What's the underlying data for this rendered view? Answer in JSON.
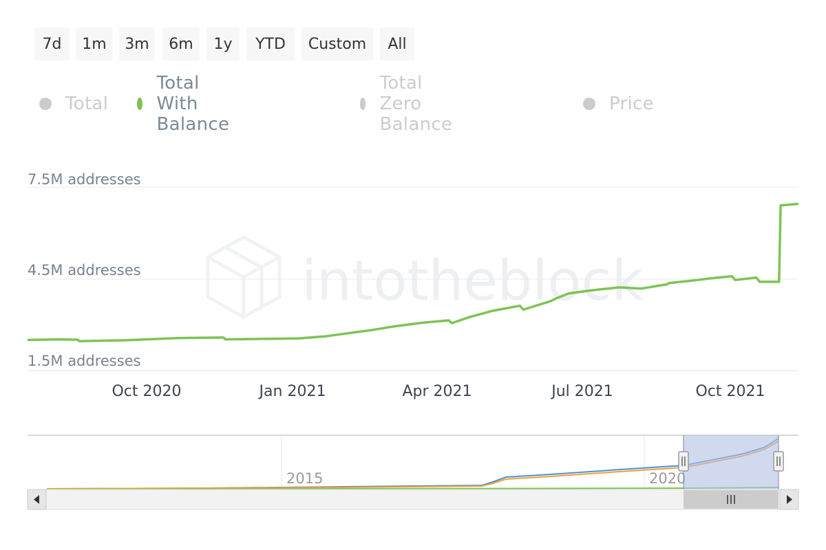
{
  "range_selector": {
    "buttons": [
      "7d",
      "1m",
      "3m",
      "6m",
      "1y",
      "YTD",
      "Custom",
      "All"
    ]
  },
  "legend": {
    "items": [
      {
        "label": "Total",
        "active": false,
        "color": "#cccccc"
      },
      {
        "label": "Total With Balance",
        "active": true,
        "color": "#7dc354"
      },
      {
        "label": "Total Zero Balance",
        "active": false,
        "color": "#cccccc"
      },
      {
        "label": "Price",
        "active": false,
        "color": "#cccccc"
      }
    ]
  },
  "watermark": "intotheblock",
  "chart_data": {
    "type": "line",
    "title": "",
    "y_axis": {
      "ticks": [
        "7.5M addresses",
        "4.5M addresses",
        "1.5M addresses"
      ],
      "range_millions": [
        1.5,
        7.5
      ],
      "tick_values_millions": [
        7.5,
        4.5,
        1.5
      ],
      "grid": true
    },
    "x_axis": {
      "ticks": [
        "Oct 2020",
        "Jan 2021",
        "Apr 2021",
        "Jul 2021",
        "Oct 2021"
      ],
      "range": [
        "2020-08-01",
        "2021-11-20"
      ]
    },
    "series": [
      {
        "name": "Total With Balance",
        "color": "#7dc354",
        "unit": "million addresses",
        "x": [
          "2020-08-01",
          "2020-08-20",
          "2020-09-01",
          "2020-09-02",
          "2020-10-01",
          "2020-11-01",
          "2020-11-30",
          "2020-12-01",
          "2020-12-15",
          "2021-01-01",
          "2021-01-15",
          "2021-02-01",
          "2021-02-15",
          "2021-03-01",
          "2021-03-15",
          "2021-04-01",
          "2021-04-18",
          "2021-04-20",
          "2021-05-01",
          "2021-05-15",
          "2021-06-01",
          "2021-06-03",
          "2021-06-20",
          "2021-06-23",
          "2021-07-01",
          "2021-07-15",
          "2021-08-01",
          "2021-08-15",
          "2021-08-31",
          "2021-09-01",
          "2021-09-15",
          "2021-10-01",
          "2021-10-10",
          "2021-10-12",
          "2021-10-25",
          "2021-10-27",
          "2021-11-08",
          "2021-11-09",
          "2021-11-20"
        ],
        "values": [
          2.5,
          2.52,
          2.51,
          2.46,
          2.49,
          2.56,
          2.58,
          2.52,
          2.53,
          2.54,
          2.55,
          2.62,
          2.72,
          2.82,
          2.94,
          3.06,
          3.14,
          3.05,
          3.25,
          3.45,
          3.62,
          3.49,
          3.77,
          3.85,
          4.02,
          4.12,
          4.22,
          4.18,
          4.32,
          4.36,
          4.44,
          4.54,
          4.58,
          4.46,
          4.54,
          4.4,
          4.4,
          6.9,
          6.95
        ]
      }
    ]
  },
  "navigator": {
    "x_labels": [
      "2015",
      "2020"
    ],
    "series_colors": [
      "#4a90d9",
      "#f0a030",
      "#7dc354"
    ],
    "selected_range": [
      "2020-08-01",
      "2021-11-20"
    ]
  }
}
